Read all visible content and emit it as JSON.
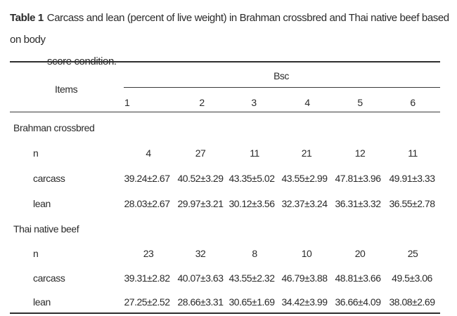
{
  "caption": {
    "label": "Table 1",
    "text_line1": "Carcass and lean (percent of live weight) in Brahman crossbred and Thai native beef based on body",
    "text_line2": "score condition."
  },
  "header": {
    "items_label": "Items",
    "group_label": "Bsc",
    "columns": [
      "1",
      "2",
      "3",
      "4",
      "5",
      "6"
    ]
  },
  "groups": [
    {
      "name": "Brahman crossbred",
      "rows": [
        {
          "label": "n",
          "values": [
            "4",
            "27",
            "11",
            "21",
            "12",
            "11"
          ]
        },
        {
          "label": "carcass",
          "values": [
            "39.24±2.67",
            "40.52±3.29",
            "43.35±5.02",
            "43.55±2.99",
            "47.81±3.96",
            "49.91±3.33"
          ]
        },
        {
          "label": "lean",
          "values": [
            "28.03±2.67",
            "29.97±3.21",
            "30.12±3.56",
            "32.37±3.24",
            "36.31±3.32",
            "36.55±2.78"
          ]
        }
      ]
    },
    {
      "name": "Thai native beef",
      "rows": [
        {
          "label": "n",
          "values": [
            "23",
            "32",
            "8",
            "10",
            "20",
            "25"
          ]
        },
        {
          "label": "carcass",
          "values": [
            "39.31±2.82",
            "40.07±3.63",
            "43.55±2.32",
            "46.79±3.88",
            "48.81±3.66",
            "49.5±3.06"
          ]
        },
        {
          "label": "lean",
          "values": [
            "27.25±2.52",
            "28.66±3.31",
            "30.65±1.69",
            "34.42±3.99",
            "36.66±4.09",
            "38.08±2.69"
          ]
        }
      ]
    }
  ]
}
